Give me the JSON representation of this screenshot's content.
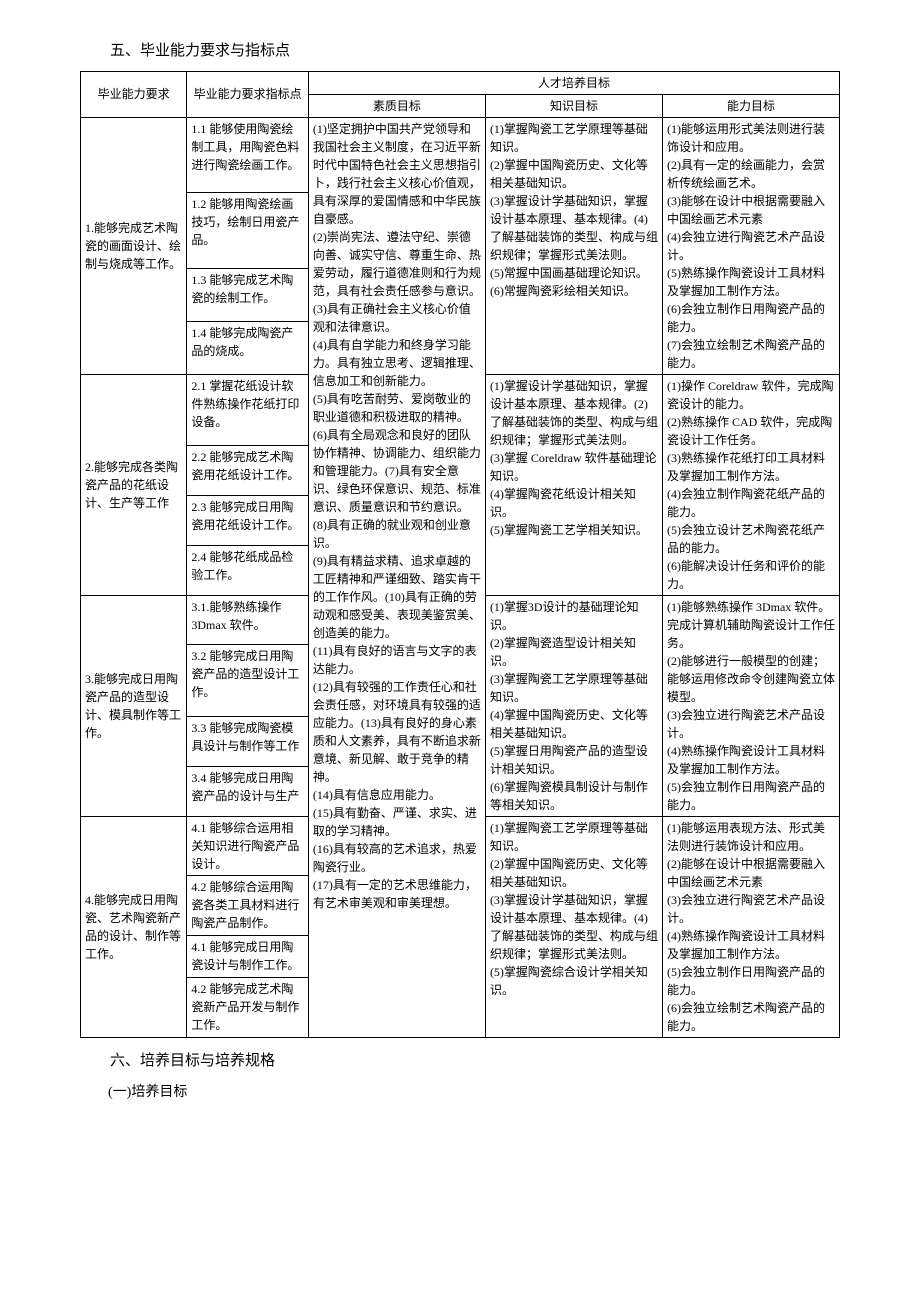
{
  "heading5": "五、毕业能力要求与指标点",
  "heading6": "六、培养目标与培养规格",
  "subheading61": "(一)培养目标",
  "table": {
    "headers": {
      "req": "毕业能力要求",
      "ind": "毕业能力要求指标点",
      "goals_group": "人才培养目标",
      "goal1": "素质目标",
      "goal2": "知识目标",
      "goal3": "能力目标"
    },
    "groups": [
      {
        "req": "1.能够完成艺术陶瓷的画面设计、绘制与烧成等工作。",
        "goal2": "(1)掌握陶瓷工艺学原理等基础知识。\n(2)掌握中国陶瓷历史、文化等相关基础知识。\n(3)掌握设计学基础知识，掌握设计基本原理、基本规律。(4)了解基础装饰的类型、构成与组织规律；掌握形式美法则。\n(5)常握中国画基础理论知识。\n(6)常握陶瓷彩绘相关知识。",
        "goal3": "(1)能够运用形式美法则进行装饰设计和应用。\n(2)具有一定的绘画能力，会赏析传统绘画艺术。\n(3)能够在设计中根据需要融入中国绘画艺术元素\n(4)会独立进行陶瓷艺术产品设计。\n(5)熟练操作陶瓷设计工具材料及掌握加工制作方法。\n(6)会独立制作日用陶瓷产品的能力。\n(7)会独立绘制艺术陶瓷产品的能力。",
        "inds": [
          "1.1 能够使用陶瓷绘制工具，用陶瓷色料进行陶瓷绘画工作。",
          "1.2 能够用陶瓷绘画技巧，绘制日用瓷产品。",
          "1.3 能够完成艺术陶瓷的绘制工作。",
          "1.4 能够完成陶瓷产品的烧成。"
        ]
      },
      {
        "req": "2.能够完成各类陶瓷产品的花纸设计、生产等工作",
        "goal2": "(1)掌握设计学基础知识，掌握设计基本原理、基本规律。(2)了解基础装饰的类型、构成与组织规律；掌握形式美法则。\n(3)掌握 Coreldraw 软件基础理论知识。\n(4)掌握陶瓷花纸设计相关知识。\n(5)掌握陶瓷工艺学相关知识。",
        "goal3": "(1)操作 Coreldraw 软件，完成陶瓷设计的能力。\n(2)熟练操作 CAD 软件，完成陶瓷设计工作任务。\n(3)熟练操作花纸打印工具材料及掌握加工制作方法。\n(4)会独立制作陶瓷花纸产品的能力。\n(5)会独立设计艺术陶瓷花纸产品的能力。\n(6)能解决设计任务和评价的能力。",
        "inds": [
          "2.1 掌握花纸设计软件熟练操作花纸打印设备。",
          "2.2 能够完成艺术陶瓷用花纸设计工作。",
          "2.3 能够完成日用陶瓷用花纸设计工作。",
          "2.4 能够花纸成品检验工作。"
        ]
      },
      {
        "req": "3.能够完成日用陶瓷产品的造型设计、模具制作等工作。",
        "goal2": "(1)掌握3D设计的基础理论知识。\n(2)掌握陶瓷造型设计相关知识。\n(3)掌握陶瓷工艺学原理等基础知识。\n(4)掌握中国陶瓷历史、文化等相关基础知识。\n(5)掌握日用陶瓷产品的造型设计相关知识。\n(6)掌握陶瓷模具制设计与制作等相关知识。",
        "goal3": "(1)能够熟练操作 3Dmax 软件。完成计算机辅助陶瓷设计工作任务。\n(2)能够进行一般模型的创建；能够运用修改命令创建陶瓷立体模型。\n(3)会独立进行陶瓷艺术产品设计。\n(4)熟练操作陶瓷设计工具材料及掌握加工制作方法。\n(5)会独立制作日用陶瓷产品的能力。",
        "inds": [
          "3.1.能够熟练操作 3Dmax 软件。",
          "3.2 能够完成日用陶瓷产品的造型设计工作。",
          "3.3 能够完成陶瓷模具设计与制作等工作",
          "3.4 能够完成日用陶瓷产品的设计与生产"
        ]
      },
      {
        "req": "4.能够完成日用陶瓷、艺术陶瓷新产品的设计、制作等工作。",
        "goal2": "(1)掌握陶瓷工艺学原理等基础知识。\n(2)掌握中国陶瓷历史、文化等相关基础知识。\n(3)掌握设计学基础知识，掌握设计基本原理、基本规律。(4)了解基础装饰的类型、构成与组织规律；掌握形式美法则。\n(5)掌握陶瓷综合设计学相关知识。",
        "goal3": "(1)能够运用表现方法、形式美法则进行装饰设计和应用。\n(2)能够在设计中根据需要融入中国绘画艺术元素\n(3)会独立进行陶瓷艺术产品设计。\n(4)熟练操作陶瓷设计工具材料及掌握加工制作方法。\n(5)会独立制作日用陶瓷产品的能力。\n(6)会独立绘制艺术陶瓷产品的能力。",
        "inds": [
          "4.1 能够综合运用相关知识进行陶瓷产品设计。",
          "4.2 能够综合运用陶瓷各类工具材料进行陶瓷产品制作。",
          "4.1 能够完成日用陶瓷设计与制作工作。",
          "4.2 能够完成艺术陶瓷新产品开发与制作工作。"
        ]
      }
    ],
    "goal1_all": "(1)坚定拥护中国共产党领导和我国社会主义制度，在习近平新时代中国特色社会主义思想指引\n卜，践行社会主义核心价值观，具有深厚的爱国情感和中华民族自豪感。\n(2)崇尚宪法、遵法守纪、崇德向善、诚实守信、尊重生命、热爱劳动，履行道德准则和行为规范，具有社会责任感参与意识。\n(3)具有正确社会主义核心价值观和法律意识。\n(4)具有自学能力和终身学习能力。具有独立思考、逻辑推理、信息加工和创新能力。\n(5)具有吃苦耐劳、爱岗敬业的职业道德和积极进取的精神。\n(6)具有全局观念和良好的团队协作精神、协调能力、组织能力和管理能力。(7)具有安全意识、绿色环保意识、规范、标准意识、质量意识和节约意识。\n(8)具有正确的就业观和创业意识。\n(9)具有精益求精、追求卓越的工匠精神和严谨细致、踏实肯干的工作作风。(10)具有正确的劳动观和感受美、表现美鉴赏美、创造美的能力。\n(11)具有良好的语言与文字的表达能力。\n(12)具有较强的工作责任心和社会责任感，对环境具有较强的适应能力。(13)具有良好的身心素质和人文素养，具有不断追求新意境、新见解、敢于竞争的精神。\n(14)具有信息应用能力。\n(15)具有勤奋、严谨、求实、进取的学习精神。\n(16)具有较高的艺术追求，热爱陶瓷行业。\n(17)具有一定的艺术思维能力，有艺术审美观和审美理想。"
  }
}
